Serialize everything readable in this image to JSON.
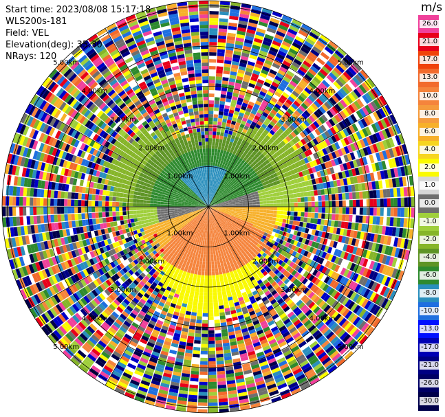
{
  "header": {
    "start_time": "Start time: 2023/08/08 15:17:18",
    "instrument": "WLS200s-181",
    "field": "Field: VEL",
    "elevation": "Elevation(deg): 35.30",
    "nrays": "NRays: 120"
  },
  "colorbar": {
    "unit": "m/s",
    "ticks": [
      {
        "label": "26.0",
        "color": "#f0419b"
      },
      {
        "label": "21.0",
        "color": "#e8001a"
      },
      {
        "label": "17.0",
        "color": "#f0420a"
      },
      {
        "label": "13.0",
        "color": "#f26a2c"
      },
      {
        "label": "10.0",
        "color": "#f5843c"
      },
      {
        "label": "8.0",
        "color": "#f59b3d"
      },
      {
        "label": "6.0",
        "color": "#f7b02a"
      },
      {
        "label": "4.0",
        "color": "#f7d51f"
      },
      {
        "label": "2.0",
        "color": "#fafa00"
      },
      {
        "label": "1.0",
        "color": "#d7d7d7"
      },
      {
        "label": "0.0",
        "color": "#6e6e6e"
      },
      {
        "label": "-1.0",
        "color": "#9fcf3b"
      },
      {
        "label": "-2.0",
        "color": "#86b529"
      },
      {
        "label": "-4.0",
        "color": "#5e9425"
      },
      {
        "label": "-6.0",
        "color": "#2e8a2e"
      },
      {
        "label": "-8.0",
        "color": "#2a8fbd"
      },
      {
        "label": "-10.0",
        "color": "#1f6fe0"
      },
      {
        "label": "-13.0",
        "color": "#0010ff"
      },
      {
        "label": "-17.0",
        "color": "#0000b4"
      },
      {
        "label": "-21.0",
        "color": "#000082"
      },
      {
        "label": "-26.0",
        "color": "#000064"
      },
      {
        "label": "-30.0",
        "color": "#00004a"
      }
    ]
  },
  "range_rings": [
    {
      "label": "1.00km"
    },
    {
      "label": "2.00km"
    },
    {
      "label": "3.00km"
    },
    {
      "label": "4.00km"
    },
    {
      "label": "5.00km"
    }
  ],
  "palette": {
    "noise": [
      "#f0419b",
      "#e8001a",
      "#0000c8",
      "#000082",
      "#fafa00",
      "#f5843c",
      "#2e8a2e",
      "#9fcf3b",
      "#1f6fe0",
      "#ffffff",
      "#f26a2c",
      "#86b529",
      "#00004a",
      "#f7b02a",
      "#2a8fbd",
      "#6e6e6e"
    ],
    "approach_strong": "#2e8a2e",
    "approach_mid": "#5e9425",
    "approach_weak": "#86b529",
    "recede_strong": "#f5843c",
    "recede_mid": "#f7b02a",
    "recede_weak": "#fafa00",
    "zero": "#6e6e6e",
    "near_zero": "#9fcf3b",
    "core_blue": "#2a8fbd"
  }
}
